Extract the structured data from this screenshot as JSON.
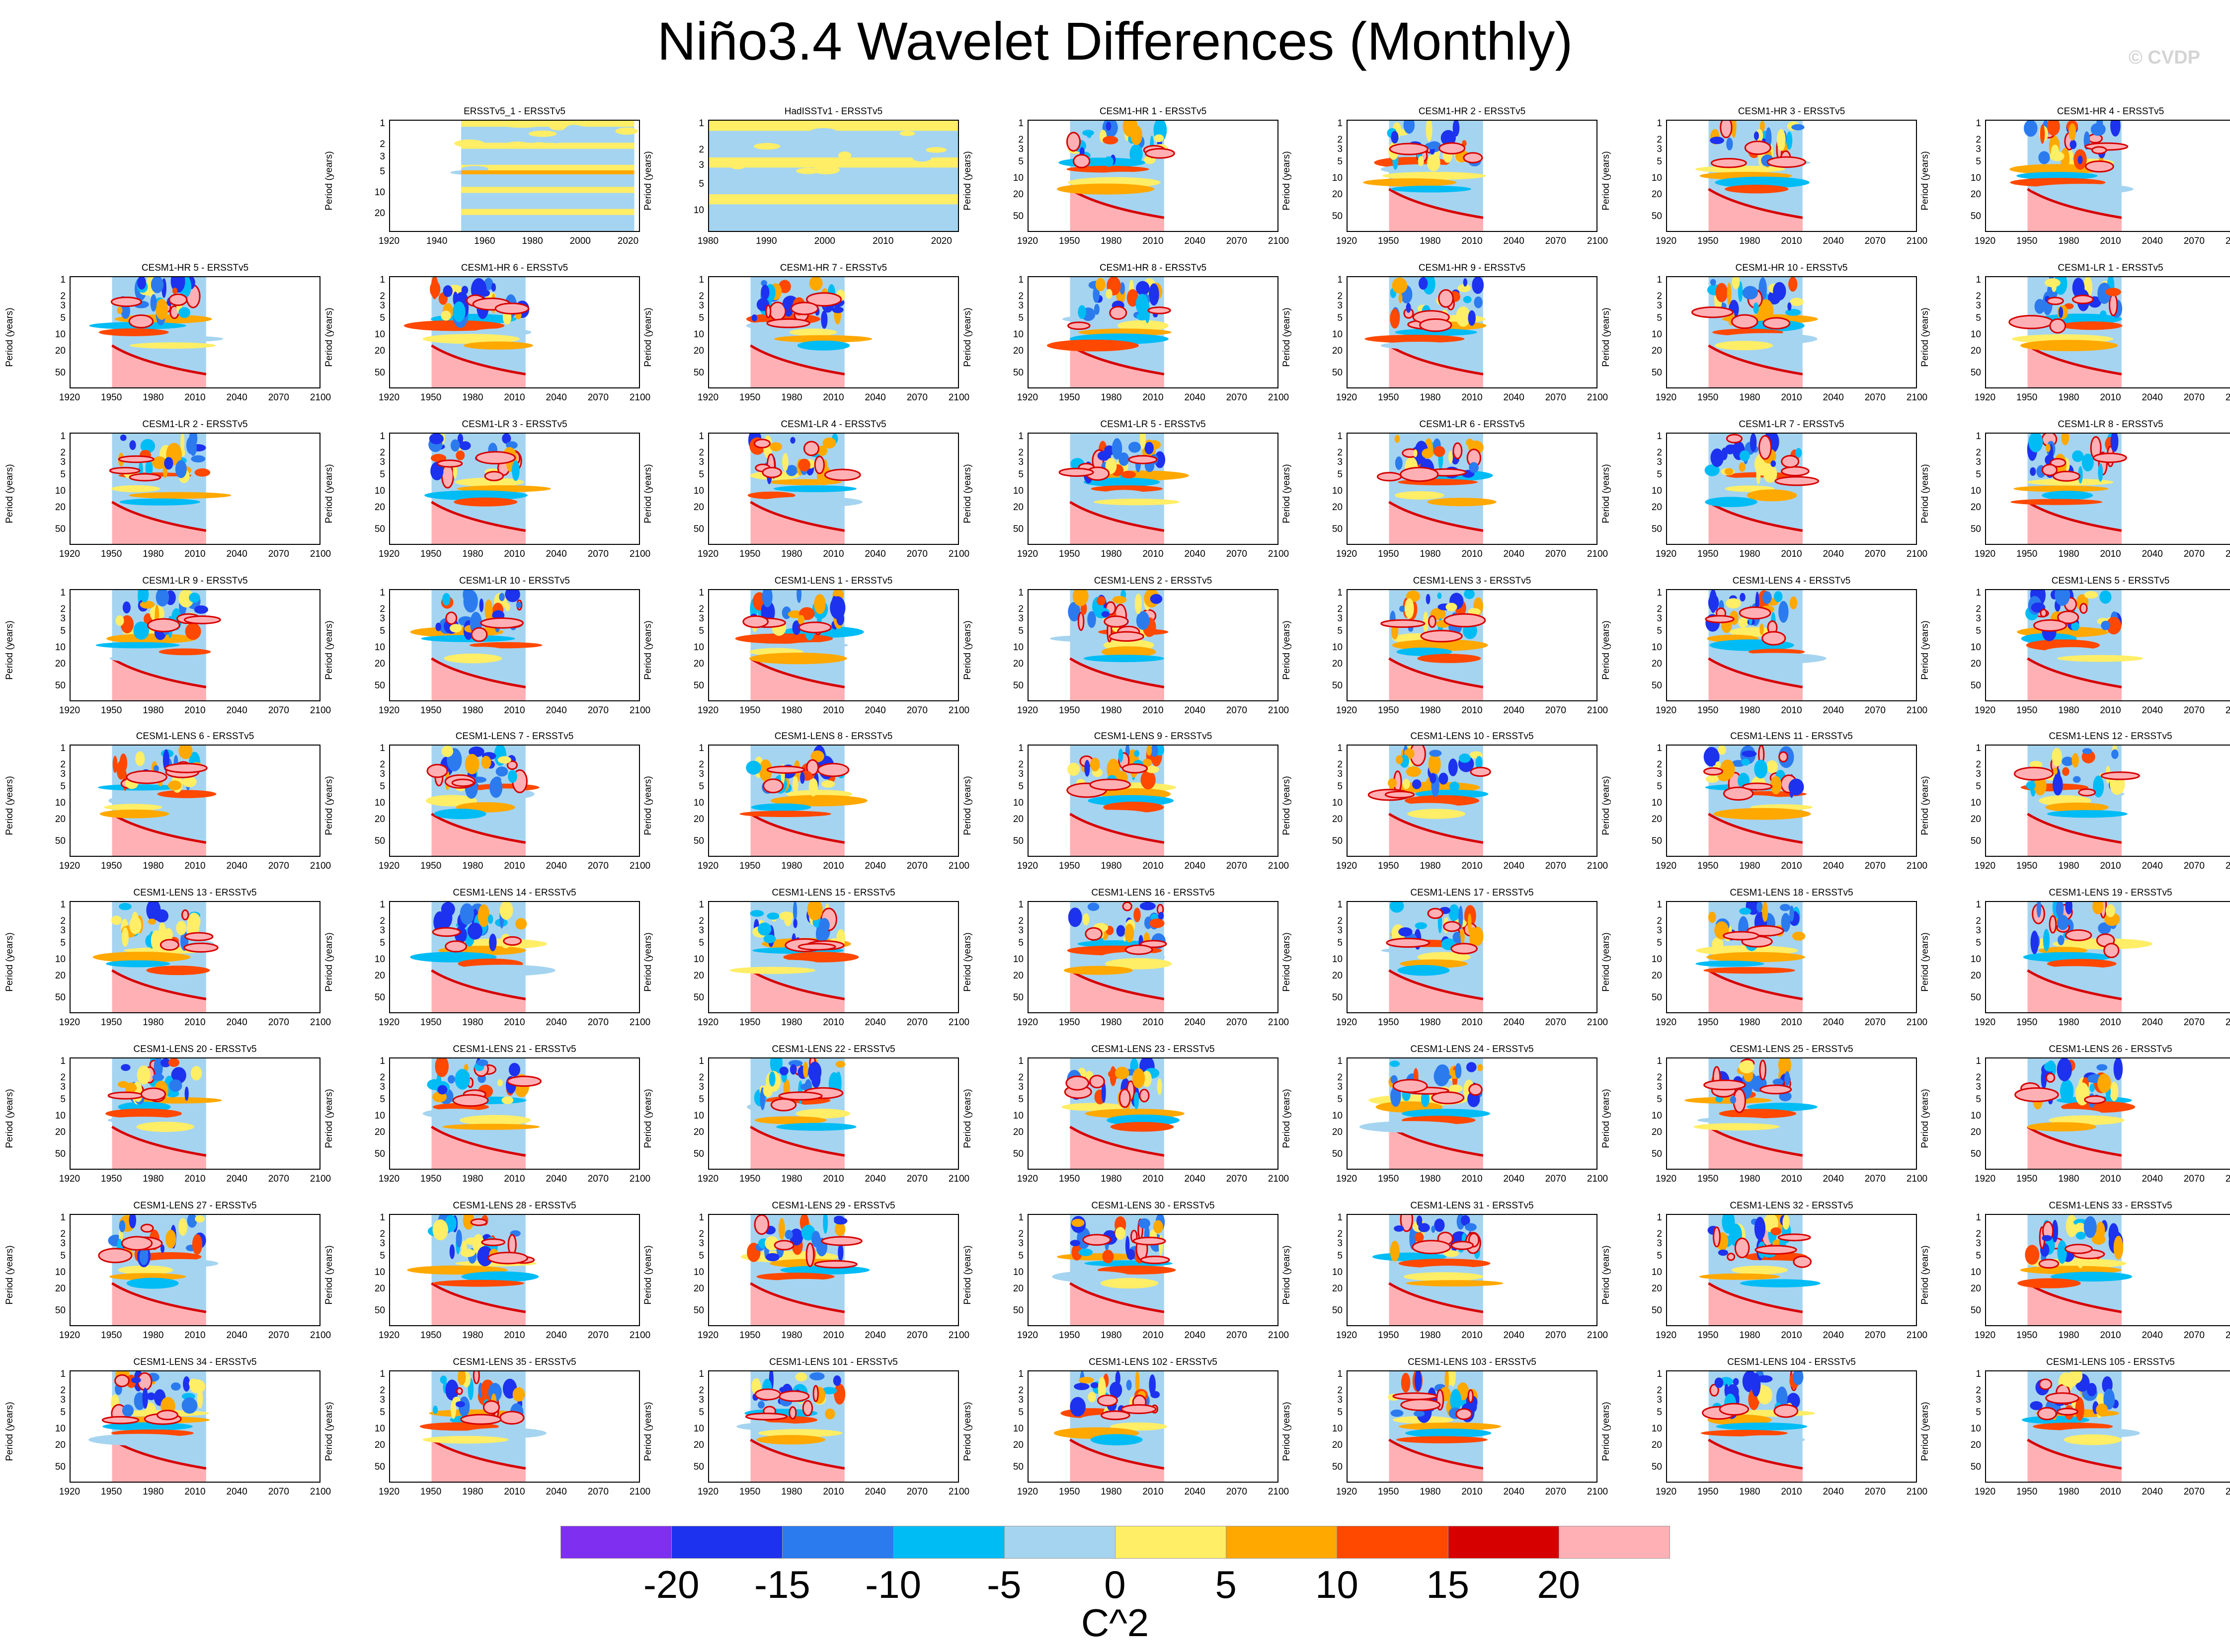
{
  "title": "Niño3.4 Wavelet Differences (Monthly)",
  "watermark": "© CVDP",
  "chart_data": {
    "type": "heatmap",
    "ylabel": "Period (years)",
    "colorbar": {
      "label": "C^2",
      "tick_labels": [
        "-20",
        "-15",
        "-10",
        "-5",
        "0",
        "5",
        "10",
        "15",
        "20"
      ],
      "colors": [
        "#7f2ff0",
        "#1d32ee",
        "#2b7bef",
        "#00bcf5",
        "#a5d4f0",
        "#ffee66",
        "#ffa800",
        "#ff4800",
        "#d60000",
        "#ffb0b4"
      ]
    },
    "default_axes": {
      "xticks": [
        "1920",
        "1950",
        "1980",
        "2010",
        "2040",
        "2070",
        "2100"
      ],
      "yticks": [
        "1",
        "2",
        "3",
        "5",
        "10",
        "20",
        "50"
      ]
    },
    "panels": [
      {
        "title": "ERSSTv5_1 - ERSSTv5",
        "xticks": [
          "1920",
          "1940",
          "1960",
          "1980",
          "2000",
          "2020"
        ],
        "yticks": [
          "1",
          "2",
          "3",
          "5",
          "10",
          "20"
        ],
        "data_range": [
          1950,
          2023
        ],
        "axis_range": [
          1920,
          2025
        ]
      },
      {
        "title": "HadISSTv1 - ERSSTv5",
        "xticks": [
          "1980",
          "1990",
          "2000",
          "2010",
          "2020"
        ],
        "yticks": [
          "1",
          "2",
          "3",
          "5",
          "10"
        ],
        "data_range": [
          1980,
          2023
        ],
        "axis_range": [
          1980,
          2023
        ]
      },
      {
        "title": "CESM1-HR 1 - ERSSTv5"
      },
      {
        "title": "CESM1-HR 2 - ERSSTv5"
      },
      {
        "title": "CESM1-HR 3 - ERSSTv5"
      },
      {
        "title": "CESM1-HR 4 - ERSSTv5"
      },
      {
        "title": "CESM1-HR 5 - ERSSTv5"
      },
      {
        "title": "CESM1-HR 6 - ERSSTv5"
      },
      {
        "title": "CESM1-HR 7 - ERSSTv5"
      },
      {
        "title": "CESM1-HR 8 - ERSSTv5"
      },
      {
        "title": "CESM1-HR 9 - ERSSTv5"
      },
      {
        "title": "CESM1-HR 10 - ERSSTv5"
      },
      {
        "title": "CESM1-LR 1 - ERSSTv5"
      },
      {
        "title": "CESM1-LR 2 - ERSSTv5"
      },
      {
        "title": "CESM1-LR 3 - ERSSTv5"
      },
      {
        "title": "CESM1-LR 4 - ERSSTv5"
      },
      {
        "title": "CESM1-LR 5 - ERSSTv5"
      },
      {
        "title": "CESM1-LR 6 - ERSSTv5"
      },
      {
        "title": "CESM1-LR 7 - ERSSTv5"
      },
      {
        "title": "CESM1-LR 8 - ERSSTv5"
      },
      {
        "title": "CESM1-LR 9 - ERSSTv5"
      },
      {
        "title": "CESM1-LR 10 - ERSSTv5"
      },
      {
        "title": "CESM1-LENS 1 - ERSSTv5"
      },
      {
        "title": "CESM1-LENS 2 - ERSSTv5"
      },
      {
        "title": "CESM1-LENS 3 - ERSSTv5"
      },
      {
        "title": "CESM1-LENS 4 - ERSSTv5"
      },
      {
        "title": "CESM1-LENS 5 - ERSSTv5"
      },
      {
        "title": "CESM1-LENS 6 - ERSSTv5"
      },
      {
        "title": "CESM1-LENS 7 - ERSSTv5"
      },
      {
        "title": "CESM1-LENS 8 - ERSSTv5"
      },
      {
        "title": "CESM1-LENS 9 - ERSSTv5"
      },
      {
        "title": "CESM1-LENS 10 - ERSSTv5"
      },
      {
        "title": "CESM1-LENS 11 - ERSSTv5"
      },
      {
        "title": "CESM1-LENS 12 - ERSSTv5"
      },
      {
        "title": "CESM1-LENS 13 - ERSSTv5"
      },
      {
        "title": "CESM1-LENS 14 - ERSSTv5"
      },
      {
        "title": "CESM1-LENS 15 - ERSSTv5"
      },
      {
        "title": "CESM1-LENS 16 - ERSSTv5"
      },
      {
        "title": "CESM1-LENS 17 - ERSSTv5"
      },
      {
        "title": "CESM1-LENS 18 - ERSSTv5"
      },
      {
        "title": "CESM1-LENS 19 - ERSSTv5"
      },
      {
        "title": "CESM1-LENS 20 - ERSSTv5"
      },
      {
        "title": "CESM1-LENS 21 - ERSSTv5"
      },
      {
        "title": "CESM1-LENS 22 - ERSSTv5"
      },
      {
        "title": "CESM1-LENS 23 - ERSSTv5"
      },
      {
        "title": "CESM1-LENS 24 - ERSSTv5"
      },
      {
        "title": "CESM1-LENS 25 - ERSSTv5"
      },
      {
        "title": "CESM1-LENS 26 - ERSSTv5"
      },
      {
        "title": "CESM1-LENS 27 - ERSSTv5"
      },
      {
        "title": "CESM1-LENS 28 - ERSSTv5"
      },
      {
        "title": "CESM1-LENS 29 - ERSSTv5"
      },
      {
        "title": "CESM1-LENS 30 - ERSSTv5"
      },
      {
        "title": "CESM1-LENS 31 - ERSSTv5"
      },
      {
        "title": "CESM1-LENS 32 - ERSSTv5"
      },
      {
        "title": "CESM1-LENS 33 - ERSSTv5"
      },
      {
        "title": "CESM1-LENS 34 - ERSSTv5"
      },
      {
        "title": "CESM1-LENS 35 - ERSSTv5"
      },
      {
        "title": "CESM1-LENS 101 - ERSSTv5"
      },
      {
        "title": "CESM1-LENS 102 - ERSSTv5"
      },
      {
        "title": "CESM1-LENS 103 - ERSSTv5"
      },
      {
        "title": "CESM1-LENS 104 - ERSSTv5"
      },
      {
        "title": "CESM1-LENS 105 - ERSSTv5"
      }
    ],
    "model_data_range": [
      1950,
      2018
    ],
    "model_axis_range": [
      1920,
      2100
    ]
  }
}
